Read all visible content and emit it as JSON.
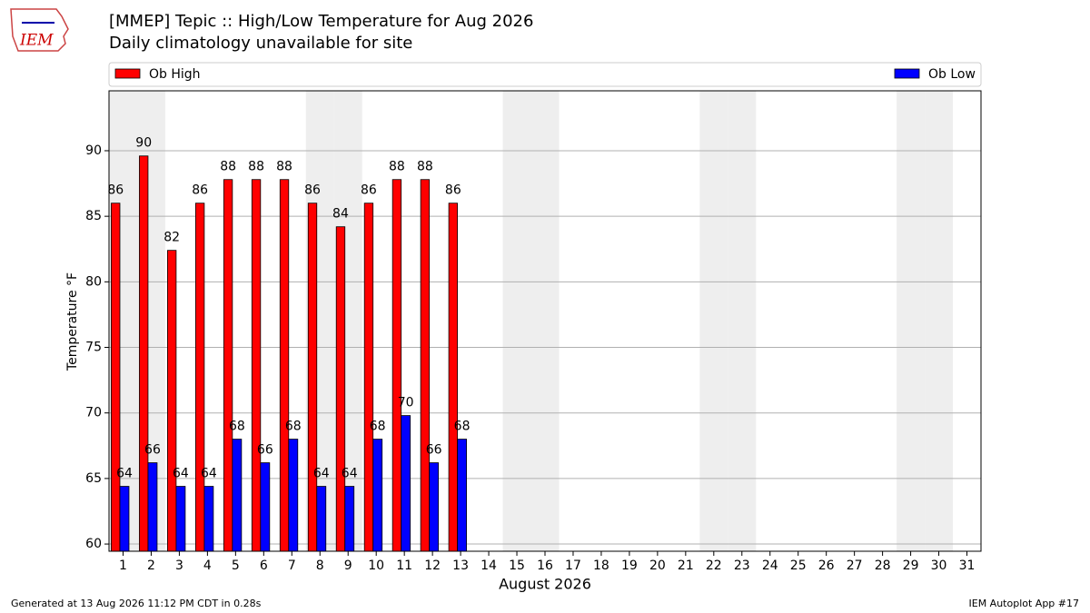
{
  "logo": "IEM",
  "footer": {
    "left": "Generated at 13 Aug 2026 11:12 PM CDT in 0.28s",
    "right": "IEM Autoplot App #17"
  },
  "chart_data": {
    "type": "bar",
    "title": "[MMEP] Tepic :: High/Low Temperature for Aug 2026",
    "subtitle": "Daily climatology unavailable for site",
    "x_label": "August 2026",
    "y_label": "Temperature °F",
    "categories": [
      "1",
      "2",
      "3",
      "4",
      "5",
      "6",
      "7",
      "8",
      "9",
      "10",
      "11",
      "12",
      "13",
      "14",
      "15",
      "16",
      "17",
      "18",
      "19",
      "20",
      "21",
      "22",
      "23",
      "24",
      "25",
      "26",
      "27",
      "28",
      "29",
      "30",
      "31"
    ],
    "shaded_categories": [
      "1",
      "2",
      "8",
      "9",
      "15",
      "16",
      "22",
      "23",
      "29",
      "30"
    ],
    "series": [
      {
        "name": "Ob High",
        "color": "#ff0000",
        "values": [
          86.0,
          89.6,
          82.4,
          86.0,
          87.8,
          87.8,
          87.8,
          86.0,
          84.2,
          86.0,
          87.8,
          87.8,
          86.0,
          null,
          null,
          null,
          null,
          null,
          null,
          null,
          null,
          null,
          null,
          null,
          null,
          null,
          null,
          null,
          null,
          null,
          null
        ],
        "value_labels": [
          "86",
          "90",
          "82",
          "86",
          "88",
          "88",
          "88",
          "86",
          "84",
          "86",
          "88",
          "88",
          "86",
          null,
          null,
          null,
          null,
          null,
          null,
          null,
          null,
          null,
          null,
          null,
          null,
          null,
          null,
          null,
          null,
          null,
          null
        ]
      },
      {
        "name": "Ob Low",
        "color": "#0000ff",
        "values": [
          64.4,
          66.2,
          64.4,
          64.4,
          68.0,
          66.2,
          68.0,
          64.4,
          64.4,
          68.0,
          69.8,
          66.2,
          68.0,
          null,
          null,
          null,
          null,
          null,
          null,
          null,
          null,
          null,
          null,
          null,
          null,
          null,
          null,
          null,
          null,
          null,
          null
        ],
        "value_labels": [
          "64",
          "66",
          "64",
          "64",
          "68",
          "66",
          "68",
          "64",
          "64",
          "68",
          "70",
          "66",
          "68",
          null,
          null,
          null,
          null,
          null,
          null,
          null,
          null,
          null,
          null,
          null,
          null,
          null,
          null,
          null,
          null,
          null,
          null
        ]
      }
    ],
    "ylim": [
      59.45,
      94.57
    ],
    "yticks": [
      60,
      65,
      70,
      75,
      80,
      85,
      90
    ],
    "grid": true,
    "legend": "top"
  }
}
